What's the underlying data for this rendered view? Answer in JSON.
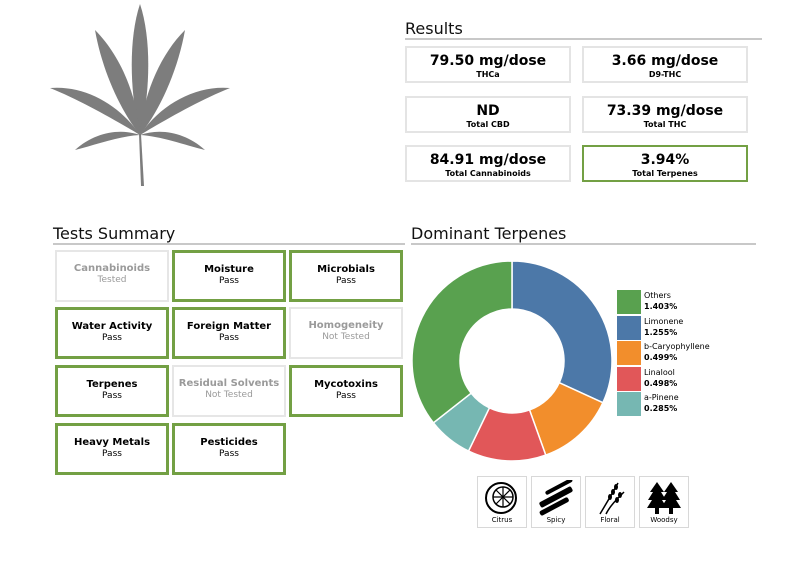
{
  "results": {
    "title": "Results",
    "items": [
      {
        "value": "79.50 mg/dose",
        "label": "THCa",
        "highlight": false
      },
      {
        "value": "3.66 mg/dose",
        "label": "D9-THC",
        "highlight": false
      },
      {
        "value": "ND",
        "label": "Total CBD",
        "highlight": false
      },
      {
        "value": "73.39 mg/dose",
        "label": "Total THC",
        "highlight": false
      },
      {
        "value": "84.91 mg/dose",
        "label": "Total Cannabinoids",
        "highlight": false
      },
      {
        "value": "3.94%",
        "label": "Total Terpenes",
        "highlight": true
      }
    ]
  },
  "tests": {
    "title": "Tests Summary",
    "items": [
      {
        "name": "Cannabinoids",
        "status": "Tested",
        "tested": false
      },
      {
        "name": "Moisture",
        "status": "Pass",
        "tested": true
      },
      {
        "name": "Microbials",
        "status": "Pass",
        "tested": true
      },
      {
        "name": "Water Activity",
        "status": "Pass",
        "tested": true
      },
      {
        "name": "Foreign Matter",
        "status": "Pass",
        "tested": true
      },
      {
        "name": "Homogeneity",
        "status": "Not Tested",
        "tested": false
      },
      {
        "name": "Terpenes",
        "status": "Pass",
        "tested": true
      },
      {
        "name": "Residual Solvents",
        "status": "Not Tested",
        "tested": false
      },
      {
        "name": "Mycotoxins",
        "status": "Pass",
        "tested": true
      },
      {
        "name": "Heavy Metals",
        "status": "Pass",
        "tested": true
      },
      {
        "name": "Pesticides",
        "status": "Pass",
        "tested": true
      }
    ]
  },
  "terpenes": {
    "title": "Dominant Terpenes",
    "aromas": [
      {
        "name": "Citrus",
        "icon": "citrus-icon"
      },
      {
        "name": "Spicy",
        "icon": "cinnamon-icon"
      },
      {
        "name": "Floral",
        "icon": "lavender-icon"
      },
      {
        "name": "Woodsy",
        "icon": "pine-trees-icon"
      }
    ]
  },
  "chart_data": {
    "type": "pie",
    "donut": true,
    "legend_position": "right",
    "series": [
      {
        "name": "Limonene",
        "value": 1.255,
        "label": "1.255%",
        "color": "#4c78a8"
      },
      {
        "name": "b-Caryophyllene",
        "value": 0.499,
        "label": "0.499%",
        "color": "#f28e2c"
      },
      {
        "name": "Linalool",
        "value": 0.498,
        "label": "0.498%",
        "color": "#e15759"
      },
      {
        "name": "a-Pinene",
        "value": 0.285,
        "label": "0.285%",
        "color": "#76b7b2"
      },
      {
        "name": "Others",
        "value": 1.403,
        "label": "1.403%",
        "color": "#59a14f"
      }
    ],
    "legend_order": [
      "Others",
      "Limonene",
      "b-Caryophyllene",
      "Linalool",
      "a-Pinene"
    ]
  },
  "colors": {
    "pass_border": "#73a044",
    "inactive_border": "#e4e4e4",
    "rule": "#c8c8c8"
  }
}
